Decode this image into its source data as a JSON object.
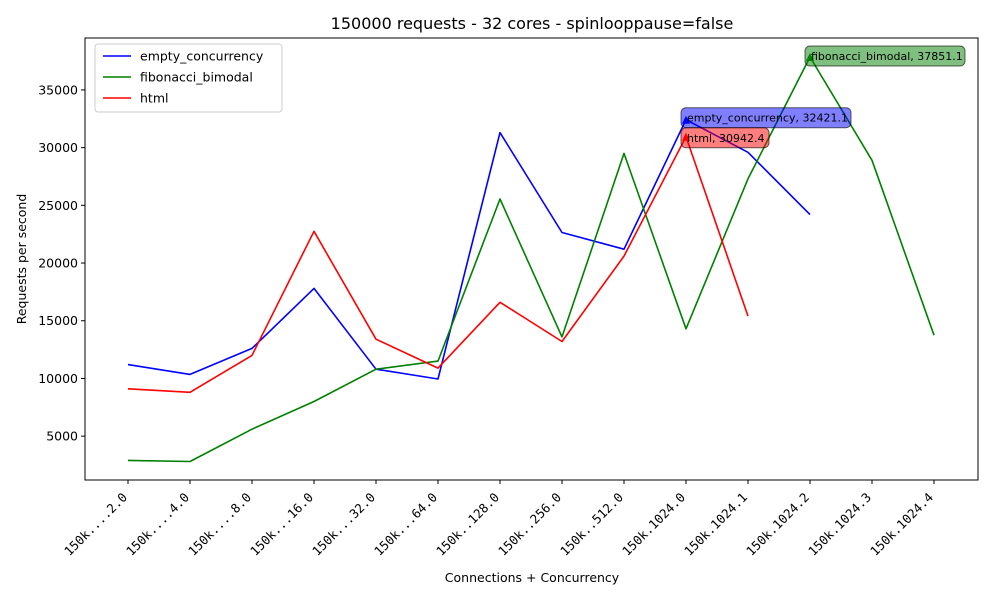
{
  "chart_data": {
    "type": "line",
    "title": "150000 requests - 32 cores - spinlooppause=false",
    "xlabel": "Connections + Concurrency",
    "ylabel": "Requests per second",
    "categories": [
      "150k....2.0",
      "150k....4.0",
      "150k....8.0",
      "150k...16.0",
      "150k...32.0",
      "150k...64.0",
      "150k..128.0",
      "150k..256.0",
      "150k..512.0",
      "150k.1024.0",
      "150k.1024.1",
      "150k.1024.2",
      "150k.1024.3",
      "150k.1024.4"
    ],
    "yticks": [
      5000,
      10000,
      15000,
      20000,
      25000,
      30000,
      35000
    ],
    "ylim": [
      1200,
      39500
    ],
    "legend_position": "top-left",
    "grid": false,
    "series": [
      {
        "name": "empty_concurrency",
        "color": "#0000ff",
        "values": [
          11200,
          10350,
          12600,
          17800,
          10800,
          9950,
          31300,
          22650,
          21200,
          32421.1,
          29600,
          24200,
          null,
          null
        ]
      },
      {
        "name": "fibonacci_bimodal",
        "color": "#008000",
        "values": [
          2900,
          2800,
          5600,
          8000,
          10800,
          11500,
          25550,
          13600,
          29500,
          14300,
          27300,
          37851.1,
          28900,
          13750
        ]
      },
      {
        "name": "html",
        "color": "#ff0000",
        "values": [
          9100,
          8800,
          12000,
          22750,
          13400,
          10900,
          16600,
          13200,
          20600,
          30942.4,
          15400,
          null,
          null,
          null
        ]
      }
    ],
    "annotations": [
      {
        "series": "empty_concurrency",
        "index": 9,
        "text": "empty_concurrency, 32421.1",
        "color": "#0000ff"
      },
      {
        "series": "html",
        "index": 9,
        "text": "html, 30942.4",
        "color": "#ff0000"
      },
      {
        "series": "fibonacci_bimodal",
        "index": 11,
        "text": "fibonacci_bimodal, 37851.1",
        "color": "#008000"
      }
    ]
  }
}
